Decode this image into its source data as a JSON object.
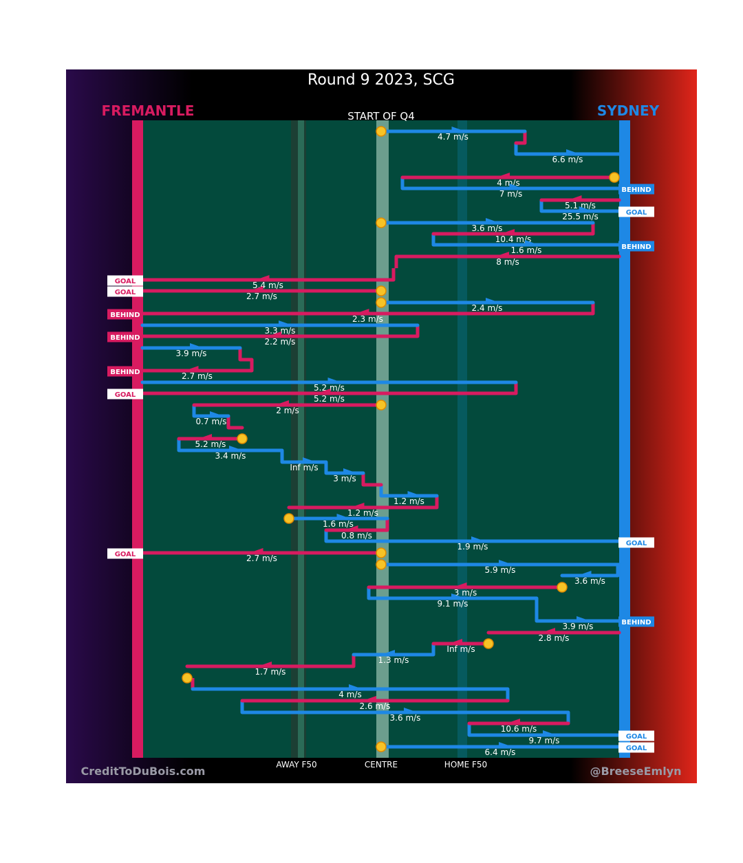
{
  "header": {
    "title": "Round 9 2023, SCG",
    "subtitle": "START OF Q4",
    "left_team": "FREMANTLE",
    "right_team": "SYDNEY"
  },
  "footer": {
    "credit_left": "CreditToDuBois.com",
    "credit_right": "@BreeseEmlyn",
    "zone_labels": [
      "AWAY F50",
      "CENTRE",
      "HOME F50"
    ]
  },
  "colors": {
    "fremantle": "#d81b60",
    "sydney": "#1e88e5",
    "field": "#034a3c",
    "start_marker": "#f7c326",
    "background_left": "#2a0a4a",
    "background_right": "#e0251a"
  },
  "chart_data": {
    "type": "line",
    "x_axis": {
      "range": [
        "Fremantle goal",
        "Sydney goal"
      ],
      "zones": [
        "AWAY F50",
        "CENTRE",
        "HOME F50"
      ]
    },
    "speed_unit": "m/s",
    "chains": [
      {
        "legs": [
          {
            "team": "sydney",
            "speed": "4.7 m/s"
          },
          {
            "team": "fremantle",
            "speed": ""
          },
          {
            "team": "sydney",
            "speed": "6.6 m/s"
          }
        ],
        "result": ""
      },
      {
        "legs": [
          {
            "team": "fremantle",
            "speed": "4 m/s"
          },
          {
            "team": "sydney",
            "speed": "7 m/s"
          }
        ],
        "result": "BEHIND",
        "result_team": "sydney"
      },
      {
        "legs": [
          {
            "team": "fremantle",
            "speed": "5.1 m/s"
          },
          {
            "team": "sydney",
            "speed": "25.5 m/s"
          }
        ],
        "result": "GOAL",
        "result_team": "sydney"
      },
      {
        "legs": [
          {
            "team": "sydney",
            "speed": "3.6 m/s"
          },
          {
            "team": "fremantle",
            "speed": "10.4 m/s"
          },
          {
            "team": "sydney",
            "speed": "1.6 m/s"
          }
        ],
        "result": "BEHIND",
        "result_team": "sydney"
      },
      {
        "legs": [
          {
            "team": "fremantle",
            "speed": "8 m/s"
          },
          {
            "team": "fremantle",
            "speed": "5.4 m/s"
          }
        ],
        "result": "GOAL",
        "result_team": "fremantle"
      },
      {
        "legs": [
          {
            "team": "fremantle",
            "speed": "2.7 m/s"
          }
        ],
        "result": "GOAL",
        "result_team": "fremantle"
      },
      {
        "legs": [
          {
            "team": "sydney",
            "speed": "2.4 m/s"
          },
          {
            "team": "fremantle",
            "speed": "2.3 m/s"
          }
        ],
        "result": "BEHIND",
        "result_team": "fremantle"
      },
      {
        "legs": [
          {
            "team": "sydney",
            "speed": "3.3 m/s"
          },
          {
            "team": "fremantle",
            "speed": "2.2 m/s"
          }
        ],
        "result": "BEHIND",
        "result_team": "fremantle"
      },
      {
        "legs": [
          {
            "team": "sydney",
            "speed": "3.9 m/s"
          },
          {
            "team": "fremantle",
            "speed": ""
          },
          {
            "team": "fremantle",
            "speed": "2.7 m/s"
          }
        ],
        "result": "BEHIND",
        "result_team": "fremantle"
      },
      {
        "legs": [
          {
            "team": "sydney",
            "speed": "5.2 m/s"
          },
          {
            "team": "fremantle",
            "speed": "5.2 m/s"
          }
        ],
        "result": "GOAL",
        "result_team": "fremantle"
      },
      {
        "legs": [
          {
            "team": "fremantle",
            "speed": "2 m/s"
          },
          {
            "team": "sydney",
            "speed": "0.7 m/s"
          },
          {
            "team": "fremantle",
            "speed": ""
          }
        ],
        "result": ""
      },
      {
        "legs": [
          {
            "team": "fremantle",
            "speed": "5.2 m/s"
          },
          {
            "team": "sydney",
            "speed": "3.4 m/s"
          },
          {
            "team": "sydney",
            "speed": "Inf m/s"
          },
          {
            "team": "sydney",
            "speed": "3 m/s"
          },
          {
            "team": "fremantle",
            "speed": ""
          },
          {
            "team": "sydney",
            "speed": "1.2 m/s"
          },
          {
            "team": "fremantle",
            "speed": "1.2 m/s"
          }
        ],
        "result": ""
      },
      {
        "legs": [
          {
            "team": "sydney",
            "speed": "1.6 m/s"
          },
          {
            "team": "fremantle",
            "speed": "0.8 m/s"
          },
          {
            "team": "sydney",
            "speed": "1.9 m/s"
          }
        ],
        "result": "GOAL",
        "result_team": "sydney"
      },
      {
        "legs": [
          {
            "team": "fremantle",
            "speed": "2.7 m/s"
          }
        ],
        "result": "GOAL",
        "result_team": "fremantle"
      },
      {
        "legs": [
          {
            "team": "sydney",
            "speed": "5.9 m/s"
          },
          {
            "team": "sydney",
            "speed": "3.6 m/s"
          }
        ],
        "result": ""
      },
      {
        "legs": [
          {
            "team": "fremantle",
            "speed": "3 m/s"
          },
          {
            "team": "sydney",
            "speed": "9.1 m/s"
          },
          {
            "team": "sydney",
            "speed": "3.9 m/s"
          }
        ],
        "result": "BEHIND",
        "result_team": "sydney"
      },
      {
        "legs": [
          {
            "team": "fremantle",
            "speed": "2.8 m/s"
          }
        ],
        "result": ""
      },
      {
        "legs": [
          {
            "team": "fremantle",
            "speed": "Inf m/s"
          },
          {
            "team": "sydney",
            "speed": "1.3 m/s"
          },
          {
            "team": "fremantle",
            "speed": "1.7 m/s"
          }
        ],
        "result": ""
      },
      {
        "legs": [
          {
            "team": "sydney",
            "speed": "4 m/s"
          },
          {
            "team": "fremantle",
            "speed": "2.6 m/s"
          },
          {
            "team": "sydney",
            "speed": "3.6 m/s"
          }
        ],
        "result": ""
      },
      {
        "legs": [
          {
            "team": "fremantle",
            "speed": "10.6 m/s"
          },
          {
            "team": "sydney",
            "speed": "9.7 m/s"
          }
        ],
        "result": "GOAL",
        "result_team": "sydney"
      },
      {
        "legs": [
          {
            "team": "sydney",
            "speed": "6.4 m/s"
          }
        ],
        "result": "GOAL",
        "result_team": "sydney"
      }
    ]
  }
}
